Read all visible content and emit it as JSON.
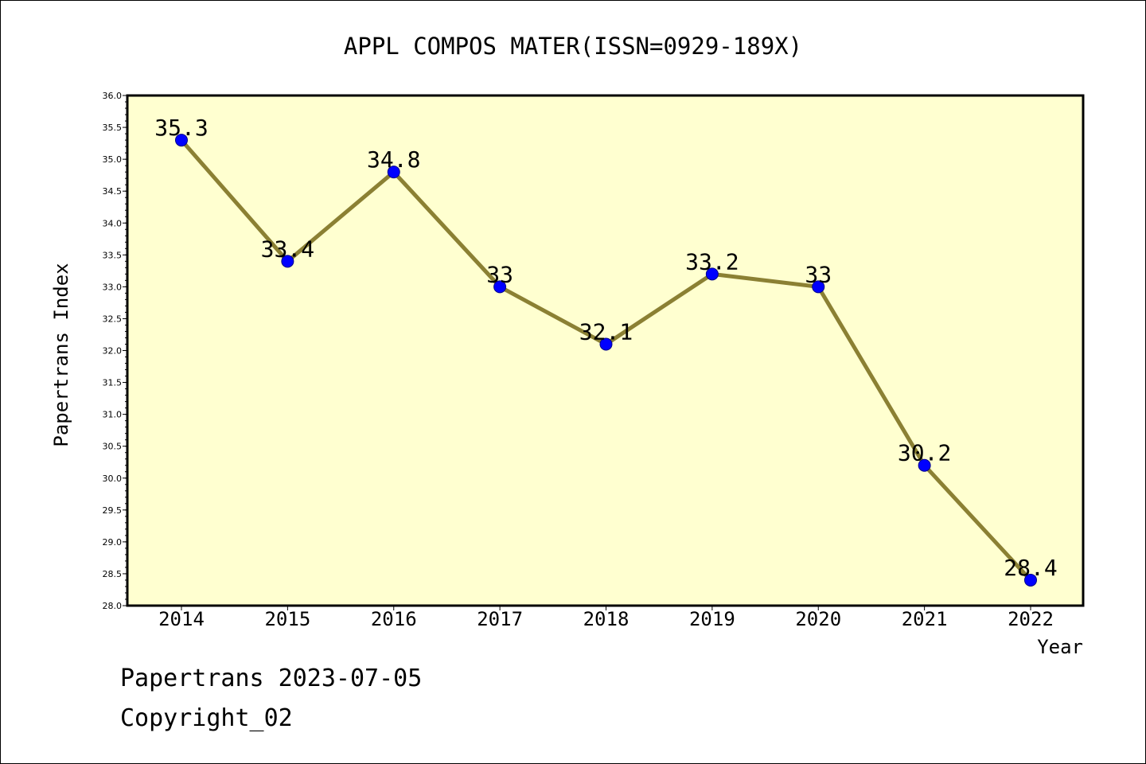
{
  "colors": {
    "plot_background": "#ffffd0",
    "line": "#8b8033",
    "marker_fill": "#0000ff",
    "marker_stroke": "#00008b",
    "axis": "#000000",
    "text": "#000000"
  },
  "chart_data": {
    "type": "line",
    "title": "APPL COMPOS MATER(ISSN=0929-189X)",
    "xlabel": "Year",
    "ylabel": "Papertrans Index",
    "categories": [
      "2014",
      "2015",
      "2016",
      "2017",
      "2018",
      "2019",
      "2020",
      "2021",
      "2022"
    ],
    "series": [
      {
        "values": [
          35.3,
          33.4,
          34.8,
          33,
          32.1,
          33.2,
          33,
          30.2,
          28.4
        ],
        "labels": [
          "35.3",
          "33.4",
          "34.8",
          "33",
          "32.1",
          "33.2",
          "33",
          "30.2",
          "28.4"
        ]
      }
    ],
    "ylim": [
      28.0,
      36.0
    ],
    "yticks": [
      "28.0",
      "28.5",
      "29.0",
      "29.5",
      "30.0",
      "30.5",
      "31.0",
      "31.5",
      "32.0",
      "32.5",
      "33.0",
      "33.5",
      "34.0",
      "34.5",
      "35.0",
      "35.5",
      "36.0"
    ],
    "grid": false,
    "legend": "none"
  },
  "footer": {
    "line1": "Papertrans 2023-07-05",
    "line2": "Copyright_02"
  }
}
